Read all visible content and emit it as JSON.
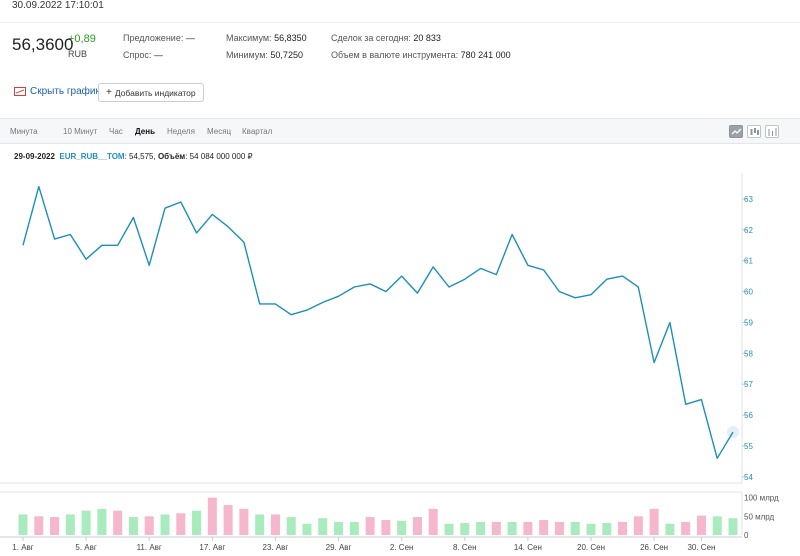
{
  "header": {
    "datetime": "30.09.2022 17:10:01"
  },
  "quote": {
    "price": "56,3600",
    "change": "+0,89",
    "currency": "RUB",
    "offer_label": "Предложение:",
    "offer_value": "—",
    "bid_label": "Спрос:",
    "bid_value": "—",
    "max_label": "Максимум:",
    "max_value": "56,8350",
    "min_label": "Минимум:",
    "min_value": "50,7250",
    "deals_label": "Сделок за сегодня:",
    "deals_value": "20 833",
    "volume_label": "Объем в валюте инструмента:",
    "volume_value": "780 241 000"
  },
  "toolbar": {
    "hide_chart_label": "Скрыть график",
    "add_indicator_label": "Добавить индикатор"
  },
  "timeframes": [
    {
      "label": "Минута",
      "active": false
    },
    {
      "label": "10 Минут",
      "active": false
    },
    {
      "label": "Час",
      "active": false
    },
    {
      "label": "День",
      "active": true
    },
    {
      "label": "Неделя",
      "active": false
    },
    {
      "label": "Месяц",
      "active": false
    },
    {
      "label": "Квартал",
      "active": false
    }
  ],
  "chart_types": [
    {
      "icon": "line-chart-icon",
      "active": true
    },
    {
      "icon": "candlestick-chart-icon",
      "active": false
    },
    {
      "icon": "bar-chart-icon",
      "active": false
    }
  ],
  "info": {
    "date": "29-09-2022",
    "ticker": "EUR_RUB__TOM",
    "price_text": ": 54,575,",
    "volume_label": "Объём",
    "volume_text": ": 54 084 000 000 ₽"
  },
  "colors": {
    "line": "#1b8fba",
    "volume_up": "#a9ebbd",
    "volume_down": "#f6b6cb",
    "axis_text": "#2a8fb8"
  },
  "chart_data": {
    "type": "line",
    "title": "",
    "xlabel": "",
    "ylabel": "",
    "ylim": [
      53.8,
      64.1
    ],
    "y_ticks": [
      54,
      55,
      56,
      57,
      58,
      59,
      60,
      61,
      62,
      63
    ],
    "x_tick_labels": [
      "1. Авг",
      "5. Авг",
      "11. Авг",
      "17. Авг",
      "23. Авг",
      "29. Авг",
      "2. Сен",
      "8. Сен",
      "14. Сен",
      "20. Сен",
      "26. Сен",
      "30. Сен"
    ],
    "x_tick_index": [
      0,
      4,
      8,
      12,
      16,
      20,
      24,
      28,
      32,
      36,
      40,
      43
    ],
    "series": [
      {
        "values": [
          61.5,
          63.4,
          61.7,
          61.85,
          61.05,
          61.5,
          61.5,
          62.4,
          60.85,
          62.7,
          62.9,
          61.9,
          62.5,
          62.1,
          61.6,
          59.6,
          59.6,
          59.25,
          59.4,
          59.65,
          59.85,
          60.15,
          60.25,
          60.0,
          60.5,
          59.95,
          60.8,
          60.15,
          60.4,
          60.75,
          60.55,
          61.85,
          60.85,
          60.7,
          60.0,
          59.8,
          59.9,
          60.4,
          60.5,
          60.15,
          57.7,
          59.0,
          56.35,
          56.5,
          54.6,
          55.45
        ]
      }
    ],
    "volume": {
      "y_ticks": [
        0,
        50,
        100
      ],
      "y_tick_labels": [
        "0",
        "50 млрд",
        "100 млрд"
      ],
      "ylim": [
        0,
        115
      ],
      "values": [
        55,
        50,
        48,
        55,
        65,
        70,
        65,
        48,
        50,
        55,
        58,
        65,
        100,
        80,
        70,
        55,
        55,
        48,
        30,
        45,
        35,
        35,
        48,
        40,
        38,
        48,
        70,
        30,
        32,
        35,
        35,
        35,
        35,
        40,
        35,
        35,
        30,
        32,
        35,
        50,
        70,
        30,
        35,
        52,
        50,
        45
      ],
      "up": [
        true,
        false,
        false,
        true,
        true,
        true,
        false,
        true,
        false,
        true,
        false,
        true,
        false,
        false,
        false,
        true,
        false,
        true,
        true,
        true,
        true,
        true,
        false,
        false,
        true,
        false,
        false,
        true,
        true,
        true,
        false,
        true,
        false,
        false,
        false,
        true,
        true,
        true,
        false,
        false,
        false,
        true,
        false,
        false,
        true,
        true
      ]
    }
  }
}
